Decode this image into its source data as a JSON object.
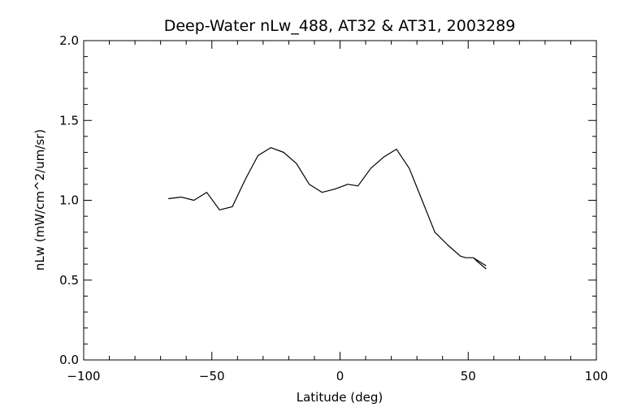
{
  "chart_data": {
    "type": "line",
    "title": "Deep-Water nLw_488, AT32 & AT31, 2003289",
    "xlabel": "Latitude (deg)",
    "ylabel": "nLw (mW/cm^2/um/sr)",
    "xlim": [
      -100,
      100
    ],
    "ylim": [
      0.0,
      2.0
    ],
    "x_ticks": [
      "−100",
      "−50",
      "0",
      "50",
      "100"
    ],
    "y_ticks": [
      "0.0",
      "0.5",
      "1.0",
      "1.5",
      "2.0"
    ],
    "grid": false,
    "series": [
      {
        "x": [
          -67,
          -62,
          -57,
          -52,
          -47,
          -42,
          -37,
          -32,
          -27,
          -22,
          -17,
          -12,
          -7,
          -2,
          3,
          7,
          12,
          17,
          22,
          27,
          32,
          37,
          42,
          47,
          49,
          52,
          54,
          57
        ],
        "values": [
          1.01,
          1.02,
          1.0,
          1.05,
          0.94,
          0.96,
          1.13,
          1.28,
          1.33,
          1.3,
          1.23,
          1.1,
          1.05,
          1.07,
          1.1,
          1.09,
          1.2,
          1.27,
          1.32,
          1.2,
          1.0,
          0.8,
          0.72,
          0.65,
          0.64,
          0.64,
          0.62,
          0.59
        ]
      },
      {
        "x": [
          52,
          54,
          57
        ],
        "values": [
          0.64,
          0.61,
          0.57
        ]
      }
    ]
  }
}
